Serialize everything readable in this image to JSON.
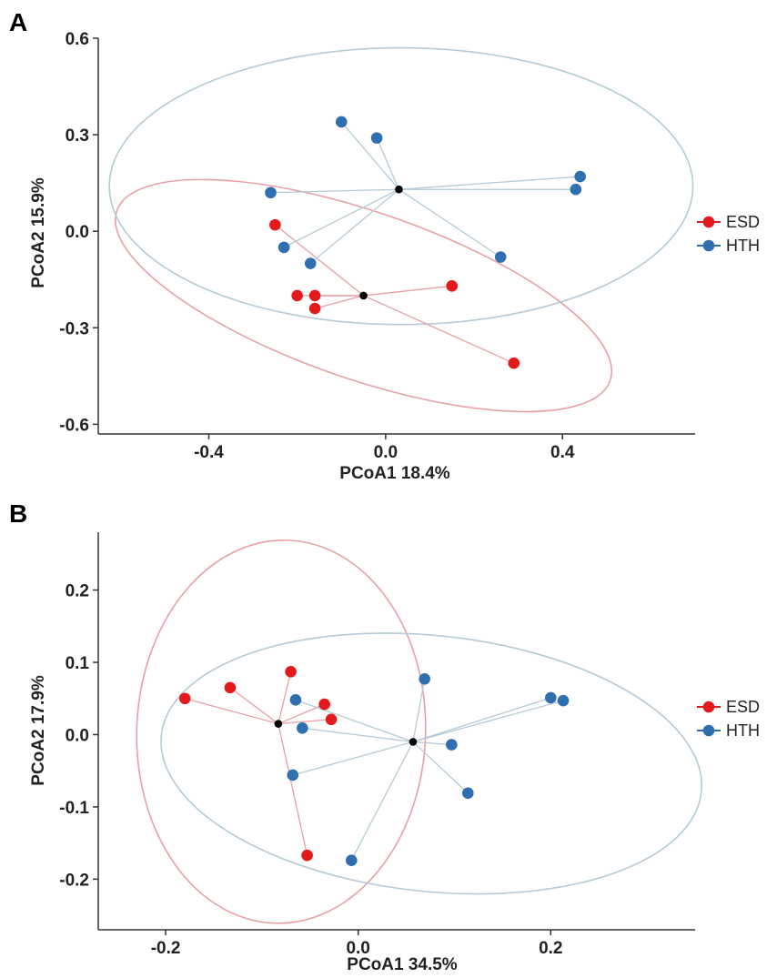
{
  "colors": {
    "ESD": "#e31a1c",
    "HTH": "#2f6fb0",
    "ESD_ellipse": "#e8a0a6",
    "HTH_ellipse": "#b5cad6",
    "centroid": "#000000",
    "axis": "#333333"
  },
  "chart_data": [
    {
      "type": "scatter",
      "panel_label": "A",
      "xlabel": "PCoA1 18.4%",
      "ylabel": "PCoA2 15.9%",
      "xlim": [
        -0.65,
        0.7
      ],
      "ylim": [
        -0.63,
        0.6
      ],
      "x_ticks": [
        -0.4,
        0.0,
        0.4
      ],
      "x_tick_labels": [
        "-0.4",
        "0.0",
        "0.4"
      ],
      "y_ticks": [
        0.6,
        0.3,
        0.0,
        -0.3,
        -0.6
      ],
      "y_tick_labels": [
        "0.6",
        "0.3",
        "0.0",
        "-0.3",
        "-0.6"
      ],
      "legend": [
        "ESD",
        "HTH"
      ],
      "series": [
        {
          "name": "ESD",
          "centroid": [
            -0.05,
            -0.2
          ],
          "points": [
            [
              -0.25,
              0.02
            ],
            [
              -0.2,
              -0.2
            ],
            [
              -0.16,
              -0.2
            ],
            [
              -0.16,
              -0.24
            ],
            [
              0.15,
              -0.17
            ],
            [
              0.29,
              -0.41
            ]
          ],
          "ellipse": {
            "center": [
              -0.05,
              -0.2
            ],
            "rx": 0.59,
            "ry": 0.26,
            "angle_deg": -19
          }
        },
        {
          "name": "HTH",
          "centroid": [
            0.03,
            0.13
          ],
          "points": [
            [
              -0.1,
              0.34
            ],
            [
              -0.02,
              0.29
            ],
            [
              -0.26,
              0.12
            ],
            [
              -0.23,
              -0.05
            ],
            [
              -0.17,
              -0.1
            ],
            [
              0.26,
              -0.08
            ],
            [
              0.44,
              0.17
            ],
            [
              0.43,
              0.13
            ]
          ],
          "ellipse": {
            "center": [
              0.035,
              0.14
            ],
            "rx": 0.66,
            "ry": 0.43,
            "angle_deg": 0
          }
        }
      ]
    },
    {
      "type": "scatter",
      "panel_label": "B",
      "xlabel": "PCoA1 34.5%",
      "ylabel": "PCoA2 17.9%",
      "xlim": [
        -0.27,
        0.35
      ],
      "ylim": [
        -0.27,
        0.28
      ],
      "x_ticks": [
        -0.2,
        0.0,
        0.2
      ],
      "x_tick_labels": [
        "-0.2",
        "0.0",
        "0.2"
      ],
      "y_ticks": [
        0.2,
        0.1,
        0.0,
        -0.1,
        -0.2
      ],
      "y_tick_labels": [
        "0.2",
        "0.1",
        "0.0",
        "-0.1",
        "-0.2"
      ],
      "legend": [
        "ESD",
        "HTH"
      ],
      "series": [
        {
          "name": "ESD",
          "centroid": [
            -0.083,
            0.015
          ],
          "points": [
            [
              -0.18,
              0.05
            ],
            [
              -0.133,
              0.065
            ],
            [
              -0.07,
              0.087
            ],
            [
              -0.035,
              0.042
            ],
            [
              -0.028,
              0.021
            ],
            [
              -0.053,
              -0.167
            ]
          ],
          "ellipse": {
            "center": [
              -0.08,
              0.004
            ],
            "rx": 0.15,
            "ry": 0.265,
            "angle_deg": -2
          }
        },
        {
          "name": "HTH",
          "centroid": [
            0.057,
            -0.01
          ],
          "points": [
            [
              0.069,
              0.077
            ],
            [
              -0.065,
              0.048
            ],
            [
              -0.058,
              0.009
            ],
            [
              0.097,
              -0.014
            ],
            [
              -0.068,
              -0.056
            ],
            [
              0.114,
              -0.081
            ],
            [
              0.2,
              0.051
            ],
            [
              0.213,
              0.047
            ],
            [
              -0.007,
              -0.174
            ]
          ],
          "ellipse": {
            "center": [
              0.076,
              -0.04
            ],
            "rx": 0.282,
            "ry": 0.177,
            "angle_deg": -6
          }
        }
      ]
    }
  ]
}
